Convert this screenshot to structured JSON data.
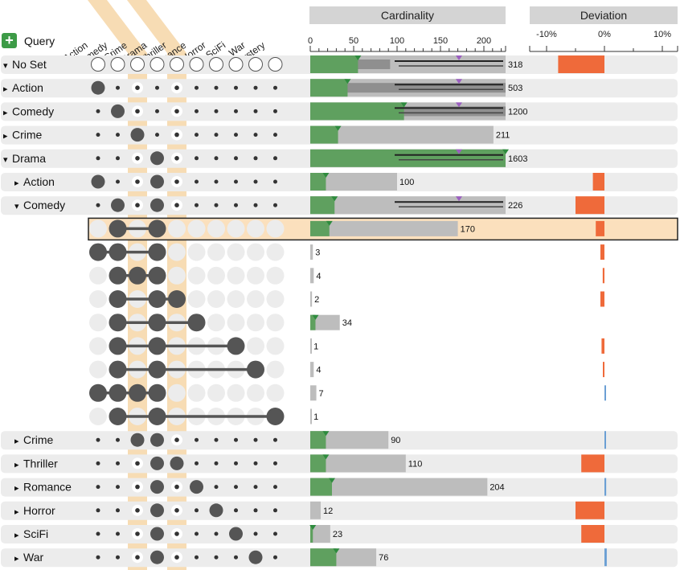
{
  "query_label": "Query",
  "sets": [
    "Action",
    "Comedy",
    "Crime",
    "Drama",
    "Thriller",
    "Romance",
    "Horror",
    "SciFi",
    "War",
    "Mystery"
  ],
  "highlight_sets": [
    2,
    4
  ],
  "headers": {
    "cardinality": "Cardinality",
    "deviation": "Deviation"
  },
  "card_ticks": [
    "0",
    "50",
    "100",
    "150",
    "200"
  ],
  "dev_ticks": [
    "-10%",
    "0%",
    "10%"
  ],
  "colors": {
    "bar": "#bdbdbd",
    "query": "#5fa05f",
    "deviation_neg": "#ef6a3a",
    "deviation_pos": "#6b9fd4",
    "highlight": "#f7dcb4",
    "dot": "#555555"
  },
  "chart_data": {
    "type": "table",
    "card_axis": [
      0,
      225
    ],
    "dev_axis": [
      -15,
      15
    ],
    "rows": [
      {
        "kind": "group",
        "label": "No Set",
        "toggle": "▾",
        "indent": 0,
        "set": null,
        "value": 318,
        "value_label": "318",
        "query": 55,
        "dark": 92,
        "dev": -8
      },
      {
        "kind": "group",
        "label": "Action",
        "toggle": "▸",
        "indent": 0,
        "set": 0,
        "value": 503,
        "value_label": "503",
        "query": 43,
        "dark": 225,
        "dev": 0
      },
      {
        "kind": "group",
        "label": "Comedy",
        "toggle": "▸",
        "indent": 0,
        "set": 1,
        "value": 1200,
        "value_label": "1200",
        "query": 108,
        "dark": 225,
        "dev": 0
      },
      {
        "kind": "group",
        "label": "Crime",
        "toggle": "▸",
        "indent": 0,
        "set": 2,
        "value": 211,
        "value_label": "211",
        "query": 32,
        "dark": 0,
        "dev": 0
      },
      {
        "kind": "group",
        "label": "Drama",
        "toggle": "▾",
        "indent": 0,
        "set": 3,
        "value": 1603,
        "value_label": "1603",
        "query": 225,
        "dark": 0,
        "dev": 0
      },
      {
        "kind": "group",
        "label": "Action",
        "toggle": "▸",
        "indent": 1,
        "set": 0,
        "value": 100,
        "value_label": "100",
        "query": 18,
        "dark": 0,
        "dev": -2
      },
      {
        "kind": "group",
        "label": "Comedy",
        "toggle": "▾",
        "indent": 1,
        "set": 1,
        "value": 226,
        "value_label": "226",
        "query": 28,
        "dark": 0,
        "dev": -5
      },
      {
        "kind": "sub",
        "members": [
          1,
          3
        ],
        "value": 170,
        "value_label": "170",
        "query": 22,
        "dev": -1.5,
        "selected": true
      },
      {
        "kind": "sub",
        "members": [
          0,
          1,
          3
        ],
        "value": 3,
        "value_label": "3",
        "query": 0,
        "dev": -0.7
      },
      {
        "kind": "sub",
        "members": [
          1,
          2,
          3
        ],
        "value": 4,
        "value_label": "4",
        "query": 0,
        "dev": -0.3
      },
      {
        "kind": "sub",
        "members": [
          1,
          3,
          4
        ],
        "value": 2,
        "value_label": "2",
        "query": 0,
        "dev": -0.7
      },
      {
        "kind": "sub",
        "members": [
          1,
          3,
          5
        ],
        "value": 34,
        "value_label": "34",
        "query": 6,
        "dev": 0
      },
      {
        "kind": "sub",
        "members": [
          1,
          3,
          7
        ],
        "value": 1,
        "value_label": "1",
        "query": 0,
        "dev": -0.5
      },
      {
        "kind": "sub",
        "members": [
          1,
          3,
          8
        ],
        "value": 4,
        "value_label": "4",
        "query": 0,
        "dev": -0.2
      },
      {
        "kind": "sub",
        "members": [
          0,
          1,
          2,
          3
        ],
        "value": 7,
        "value_label": "7",
        "query": 0,
        "dev": 0.2
      },
      {
        "kind": "sub",
        "members": [
          1,
          3,
          9
        ],
        "value": 1,
        "value_label": "1",
        "query": 0,
        "dev": 0
      },
      {
        "kind": "group",
        "label": "Crime",
        "toggle": "▸",
        "indent": 1,
        "set": 2,
        "value": 90,
        "value_label": "90",
        "query": 18,
        "dev": 0.2
      },
      {
        "kind": "group",
        "label": "Thriller",
        "toggle": "▸",
        "indent": 1,
        "set": 4,
        "value": 110,
        "value_label": "110",
        "query": 18,
        "dev": -4
      },
      {
        "kind": "group",
        "label": "Romance",
        "toggle": "▸",
        "indent": 1,
        "set": 5,
        "value": 204,
        "value_label": "204",
        "query": 25,
        "dev": 0.3
      },
      {
        "kind": "group",
        "label": "Horror",
        "toggle": "▸",
        "indent": 1,
        "set": 6,
        "value": 12,
        "value_label": "12",
        "query": 0,
        "dev": -5
      },
      {
        "kind": "group",
        "label": "SciFi",
        "toggle": "▸",
        "indent": 1,
        "set": 7,
        "value": 23,
        "value_label": "23",
        "query": 3,
        "dev": -4
      },
      {
        "kind": "group",
        "label": "War",
        "toggle": "▸",
        "indent": 1,
        "set": 8,
        "value": 76,
        "value_label": "76",
        "query": 30,
        "dev": 0.4
      }
    ]
  }
}
